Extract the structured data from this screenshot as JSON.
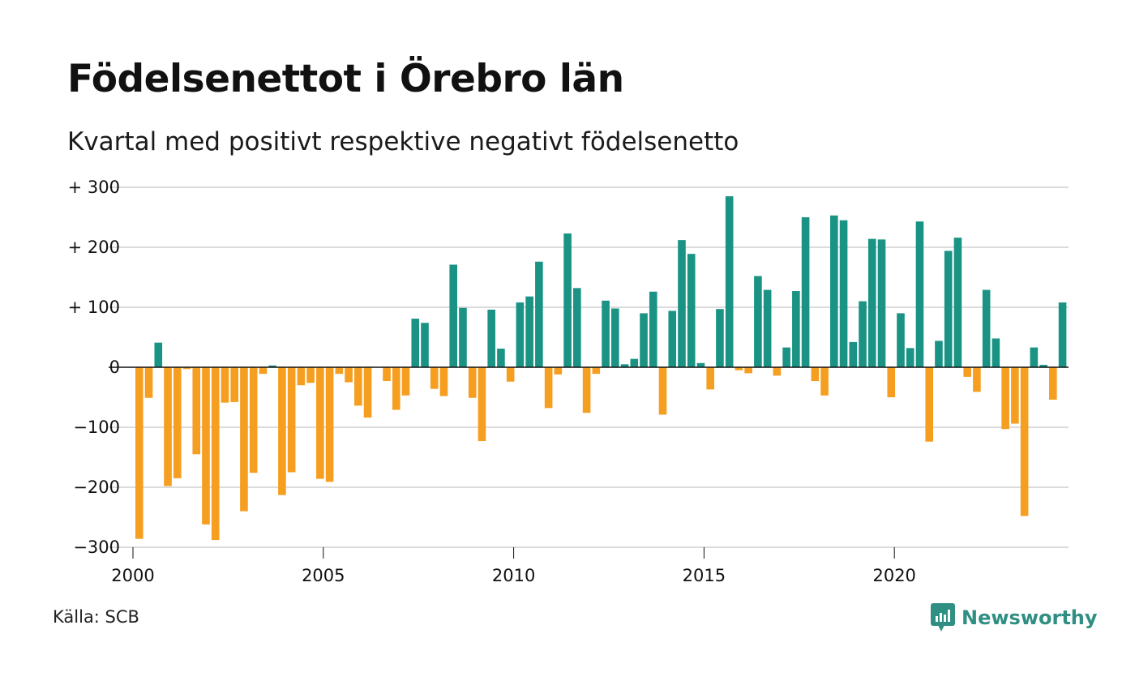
{
  "title": "Födelsenettot i Örebro län",
  "subtitle": "Kvartal med positivt respektive negativt födelsenetto",
  "source": "Källa: SCB",
  "brand": {
    "name": "Newsworthy",
    "icon": "newsworthy-logo-icon",
    "color": "#2f8f83"
  },
  "chart_data": {
    "type": "bar",
    "ylim": [
      -300,
      300
    ],
    "grid": true,
    "colors": {
      "positive": "#1a9384",
      "negative": "#f59e20"
    },
    "y_ticks": [
      {
        "value": 300,
        "label": "+ 300"
      },
      {
        "value": 200,
        "label": "+ 200"
      },
      {
        "value": 100,
        "label": "+ 100"
      },
      {
        "value": 0,
        "label": "0"
      },
      {
        "value": -100,
        "label": "−100"
      },
      {
        "value": -200,
        "label": "−200"
      },
      {
        "value": -300,
        "label": "−300"
      }
    ],
    "x_ticks": [
      {
        "value": 2000,
        "label": "2000"
      },
      {
        "value": 2005,
        "label": "2005"
      },
      {
        "value": 2010,
        "label": "2010"
      },
      {
        "value": 2015,
        "label": "2015"
      },
      {
        "value": 2020,
        "label": "2020"
      }
    ],
    "start_year": 2000,
    "values": [
      -286,
      -51,
      41,
      -198,
      -185,
      -3,
      -145,
      -262,
      -288,
      -59,
      -58,
      -240,
      -176,
      -11,
      3,
      -213,
      -175,
      -30,
      -26,
      -186,
      -191,
      -11,
      -25,
      -64,
      -84,
      0,
      -23,
      -71,
      -47,
      81,
      74,
      -36,
      -48,
      171,
      99,
      -51,
      -123,
      96,
      31,
      -24,
      108,
      118,
      176,
      -68,
      -12,
      223,
      132,
      -76,
      -11,
      111,
      98,
      5,
      14,
      90,
      126,
      -79,
      94,
      212,
      189,
      7,
      -37,
      97,
      285,
      -5,
      -10,
      152,
      129,
      -14,
      33,
      127,
      250,
      -23,
      -47,
      253,
      245,
      42,
      110,
      214,
      213,
      -50,
      90,
      32,
      243,
      -124,
      44,
      194,
      216,
      -16,
      -41,
      129,
      48,
      -103,
      -94,
      -248,
      33,
      4,
      -54,
      108
    ]
  }
}
